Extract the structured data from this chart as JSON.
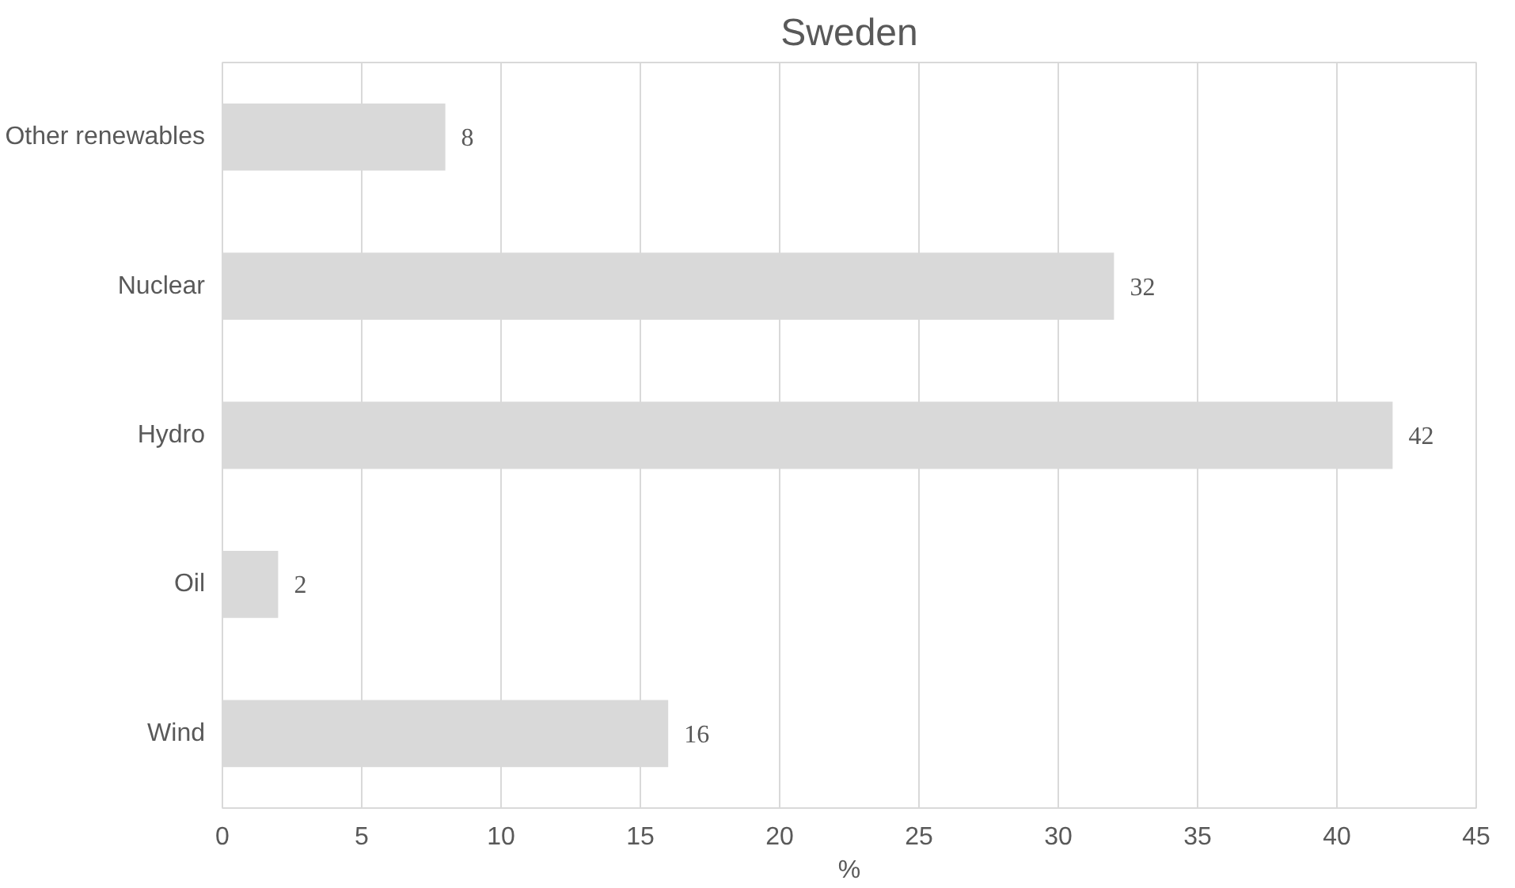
{
  "chart_data": {
    "type": "bar",
    "orientation": "horizontal",
    "title": "Sweden",
    "xlabel": "%",
    "categories": [
      "Other renewables",
      "Nuclear",
      "Hydro",
      "Oil",
      "Wind"
    ],
    "values": [
      8,
      32,
      42,
      2,
      16
    ],
    "color": "#d9d9d9",
    "xlim": [
      0,
      45
    ],
    "xticks": [
      0,
      5,
      10,
      15,
      20,
      25,
      30,
      35,
      40,
      45
    ],
    "grid": "x",
    "data_labels": true
  }
}
